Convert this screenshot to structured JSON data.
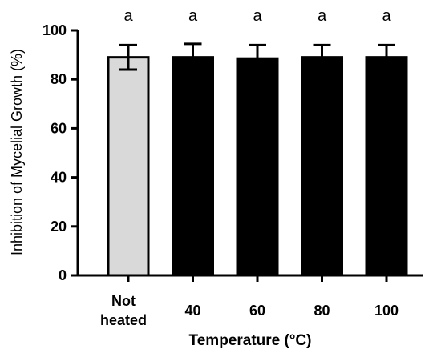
{
  "chart_data": {
    "type": "bar",
    "categories": [
      [
        "Not",
        "heated"
      ],
      [
        "40"
      ],
      [
        "60"
      ],
      [
        "80"
      ],
      [
        "100"
      ]
    ],
    "values": [
      89,
      89,
      88.5,
      89,
      89
    ],
    "error": [
      5,
      5.5,
      5.5,
      5,
      5
    ],
    "significance": [
      "a",
      "a",
      "a",
      "a",
      "a"
    ],
    "bar_colors": [
      "#d9d9d9",
      "#000000",
      "#000000",
      "#000000",
      "#000000"
    ],
    "xlabel": "Temperature (°C)",
    "ylabel": "Inhibition of Mycelial Growth (%)",
    "ylim": [
      0,
      100
    ],
    "yticks": [
      0,
      20,
      40,
      60,
      80,
      100
    ],
    "grid": false,
    "legend": "none"
  }
}
